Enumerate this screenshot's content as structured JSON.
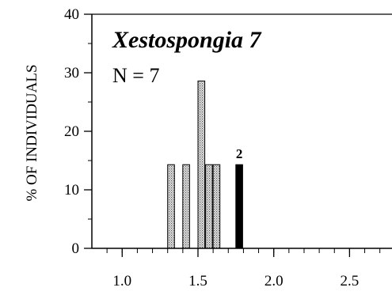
{
  "chart_data": {
    "type": "bar",
    "title": "Xestospongia 7",
    "subtitle": "N = 7",
    "ylabel": "% OF INDIVIDUALS",
    "xlabel": "",
    "xlim": [
      0.8,
      2.78
    ],
    "ylim": [
      0,
      40
    ],
    "x_ticks": [
      "1.0",
      "1.5",
      "2.0",
      "2.5"
    ],
    "x_tick_values": [
      1.0,
      1.5,
      2.0,
      2.5
    ],
    "y_ticks": [
      "0",
      "10",
      "20",
      "30",
      "40"
    ],
    "y_tick_values": [
      0,
      10,
      20,
      30,
      40
    ],
    "bin_width": 0.05,
    "bars": [
      {
        "x": 1.3,
        "value": 14.3,
        "style": "stippled"
      },
      {
        "x": 1.4,
        "value": 14.3,
        "style": "stippled"
      },
      {
        "x": 1.5,
        "value": 28.6,
        "style": "stippled"
      },
      {
        "x": 1.55,
        "value": 14.3,
        "style": "stippled"
      },
      {
        "x": 1.6,
        "value": 14.3,
        "style": "stippled"
      },
      {
        "x": 1.75,
        "value": 14.3,
        "style": "solid",
        "label": "2"
      }
    ],
    "grid": false,
    "colors": {
      "stippled": "#bdbdbd",
      "solid": "#000000"
    }
  }
}
